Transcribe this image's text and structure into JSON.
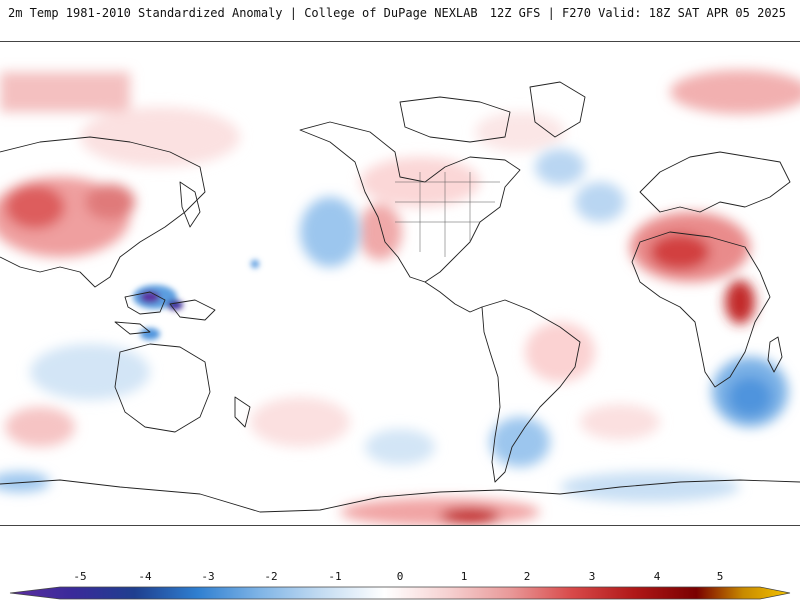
{
  "header": {
    "title": "2m Temp 1981-2010 Standardized Anomaly | College of DuPage NEXLAB",
    "run_info": "12Z GFS | F270 Valid: 18Z SAT APR 05 2025"
  },
  "colorbar": {
    "ticks": [
      "-5",
      "-4",
      "-3",
      "-2",
      "-1",
      "0",
      "1",
      "2",
      "3",
      "4",
      "5"
    ],
    "colors": [
      "#5c2ea0",
      "#1f3f8f",
      "#2f7fd0",
      "#7fb4e6",
      "#c4dcf2",
      "#ffffff",
      "#f6d2d2",
      "#e99a9a",
      "#d84a4a",
      "#b01818",
      "#7a0000",
      "#f5c400"
    ]
  },
  "map": {
    "land_outline_color": "#222222",
    "warm_color": "#e06060",
    "cold_color": "#5aa0e0"
  }
}
